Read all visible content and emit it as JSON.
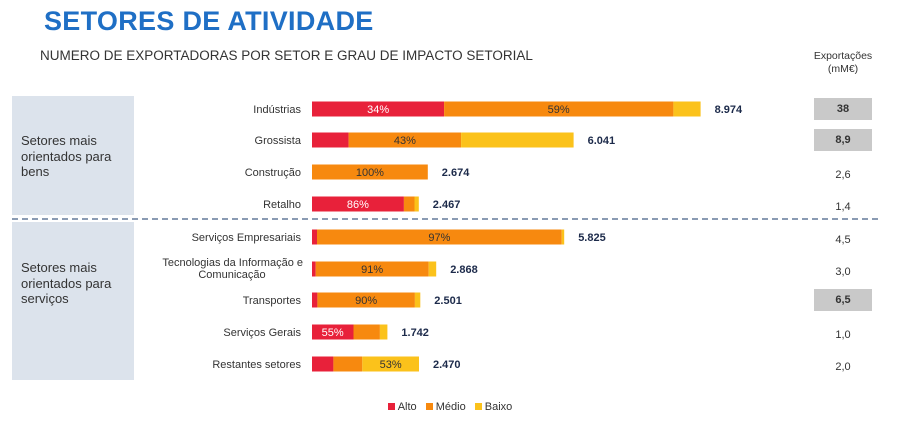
{
  "title": "SETORES DE ATIVIDADE",
  "subtitle": "NUMERO DE EXPORTADORAS POR SETOR E GRAU DE IMPACTO SETORIAL",
  "exports_header": "Exportações (mM€)",
  "groups": [
    {
      "label": "Setores mais orientados para bens"
    },
    {
      "label": "Setores mais orientados para serviços"
    }
  ],
  "colors": {
    "alto": "#e8213a",
    "medio": "#f7890f",
    "baixo": "#fbc21b",
    "group_bg": "#dce3ec",
    "title": "#1f6fc5"
  },
  "chart_data": {
    "type": "bar",
    "orientation": "horizontal",
    "stacked": true,
    "title": "NUMERO DE EXPORTADORAS POR SETOR E GRAU DE IMPACTO SETORIAL",
    "series": [
      {
        "name": "Alto",
        "values": [
          0.34,
          0.14,
          0.0,
          0.86,
          0.02,
          0.03,
          0.05,
          0.55,
          0.2
        ]
      },
      {
        "name": "Médio",
        "values": [
          0.59,
          0.43,
          1.0,
          0.1,
          0.97,
          0.91,
          0.9,
          0.35,
          0.27
        ]
      },
      {
        "name": "Baixo",
        "values": [
          0.07,
          0.43,
          0.0,
          0.04,
          0.01,
          0.06,
          0.05,
          0.1,
          0.53
        ]
      }
    ],
    "legend": [
      "Alto",
      "Médio",
      "Baixo"
    ],
    "legend_position": "bottom",
    "rows": [
      {
        "sector": "Indústrias",
        "total": 8974,
        "total_label": "8.974",
        "labels": [
          "34%",
          "59%",
          ""
        ],
        "exports": "38",
        "highlight": true
      },
      {
        "sector": "Grossista",
        "total": 6041,
        "total_label": "6.041",
        "labels": [
          "",
          "43%",
          ""
        ],
        "exports": "8,9",
        "highlight": true
      },
      {
        "sector": "Construção",
        "total": 2674,
        "total_label": "2.674",
        "labels": [
          "",
          "100%",
          ""
        ],
        "exports": "2,6",
        "highlight": false
      },
      {
        "sector": "Retalho",
        "total": 2467,
        "total_label": "2.467",
        "labels": [
          "86%",
          "",
          ""
        ],
        "exports": "1,4",
        "highlight": false
      },
      {
        "sector": "Serviços Empresariais",
        "total": 5825,
        "total_label": "5.825",
        "labels": [
          "",
          "97%",
          ""
        ],
        "exports": "4,5",
        "highlight": false
      },
      {
        "sector": "Tecnologias da Informação e Comunicação",
        "total": 2868,
        "total_label": "2.868",
        "labels": [
          "",
          "91%",
          ""
        ],
        "exports": "3,0",
        "highlight": false
      },
      {
        "sector": "Transportes",
        "total": 2501,
        "total_label": "2.501",
        "labels": [
          "",
          "90%",
          ""
        ],
        "exports": "6,5",
        "highlight": true
      },
      {
        "sector": "Serviços Gerais",
        "total": 1742,
        "total_label": "1.742",
        "labels": [
          "55%",
          "",
          ""
        ],
        "exports": "1,0",
        "highlight": false
      },
      {
        "sector": "Restantes setores",
        "total": 2470,
        "total_label": "2.470",
        "labels": [
          "",
          "",
          "53%"
        ],
        "exports": "2,0",
        "highlight": false
      }
    ]
  }
}
